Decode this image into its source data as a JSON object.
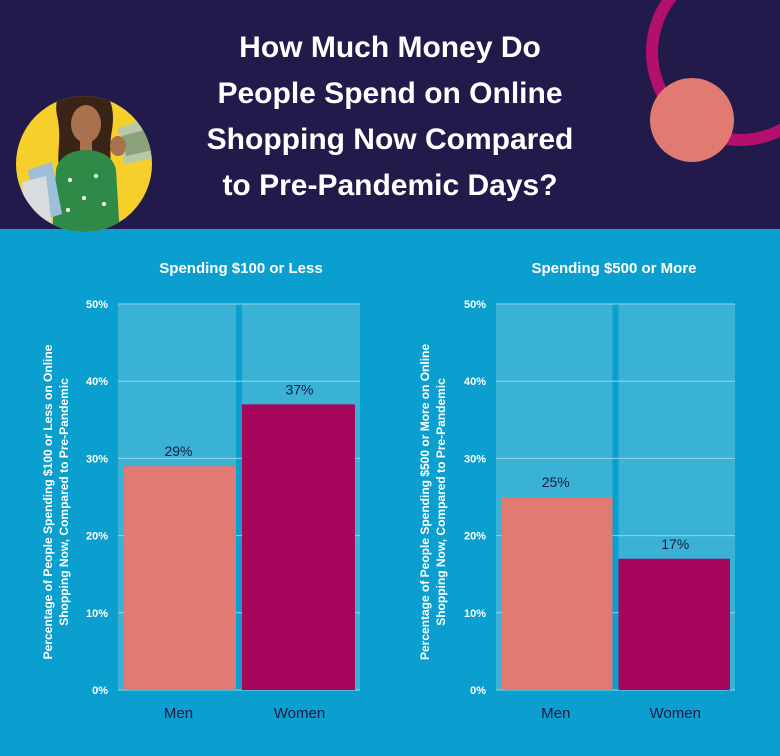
{
  "header": {
    "title_lines": [
      "How Much Money Do",
      "People Spend on Online",
      "Shopping Now Compared",
      "to Pre-Pandemic Days?"
    ]
  },
  "colors": {
    "header_bg": "#221a4a",
    "page_bg": "#0b9fcf",
    "panel_bg": "#3ab2d6",
    "men": "#e07a72",
    "women": "#a6065c",
    "ring": "#b3106e",
    "circle": "#e07a72",
    "portrait_bg": "#f6cf2d",
    "text_dark": "#1d1a45"
  },
  "chart_data": [
    {
      "type": "bar",
      "title": "Spending $100 or Less",
      "ylabel_lines": [
        "Percentage of People Spending $100 or Less on Online",
        "Shopping Now, Compared to Pre-Pandemic"
      ],
      "categories": [
        "Men",
        "Women"
      ],
      "values": [
        29,
        37
      ],
      "value_labels": [
        "29%",
        "37%"
      ],
      "ylim": [
        0,
        50
      ],
      "yticks": [
        "0%",
        "10%",
        "20%",
        "30%",
        "40%",
        "50%"
      ],
      "grid": true
    },
    {
      "type": "bar",
      "title": "Spending $500 or More",
      "ylabel_lines": [
        "Percentage of People Spending $500 or More on Online",
        "Shopping Now, Compared to Pre-Pandemic"
      ],
      "categories": [
        "Men",
        "Women"
      ],
      "values": [
        25,
        17
      ],
      "value_labels": [
        "25%",
        "17%"
      ],
      "ylim": [
        0,
        50
      ],
      "yticks": [
        "0%",
        "10%",
        "20%",
        "30%",
        "40%",
        "50%"
      ],
      "grid": true
    }
  ]
}
